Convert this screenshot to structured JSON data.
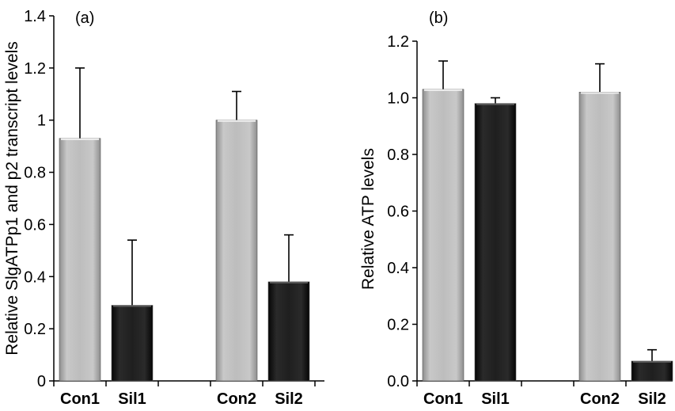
{
  "chart_data": [
    {
      "type": "bar",
      "panel_label": "(a)",
      "title": "",
      "xlabel": "",
      "ylabel": "Relative SlgATPp1 and p2  transcript levels",
      "ylim": [
        0,
        1.4
      ],
      "yticks": [
        "0",
        "0.2",
        "0.4",
        "0.6",
        "0.8",
        "1",
        "1.2",
        "1.4"
      ],
      "categories": [
        "Con1",
        "Sil1",
        "",
        "Con2",
        "Sil2"
      ],
      "values": [
        0.93,
        0.29,
        null,
        1.0,
        0.38
      ],
      "errors": [
        0.27,
        0.25,
        null,
        0.11,
        0.18
      ],
      "bar_colors": [
        "#b5b5b5",
        "#1c1c1c",
        null,
        "#b5b5b5",
        "#1c1c1c"
      ],
      "grid": false,
      "legend": "none"
    },
    {
      "type": "bar",
      "panel_label": "(b)",
      "title": "",
      "xlabel": "",
      "ylabel": "Relative ATP levels",
      "ylim": [
        0,
        1.2
      ],
      "yticks": [
        "0.0",
        "0.2",
        "0.4",
        "0.6",
        "0.8",
        "1.0",
        "1.2"
      ],
      "categories": [
        "Con1",
        "Sil1",
        "",
        "Con2",
        "Sil2"
      ],
      "values": [
        1.03,
        0.98,
        null,
        1.02,
        0.07
      ],
      "errors": [
        0.1,
        0.02,
        null,
        0.1,
        0.04
      ],
      "bar_colors": [
        "#b5b5b5",
        "#1c1c1c",
        null,
        "#b5b5b5",
        "#1c1c1c"
      ],
      "grid": false,
      "legend": "none"
    }
  ]
}
